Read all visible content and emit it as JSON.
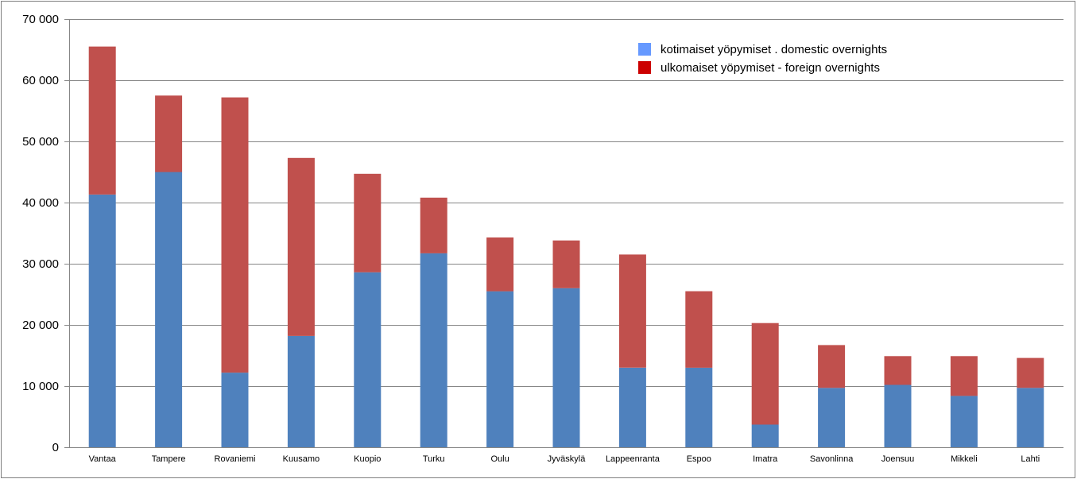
{
  "chart_data": {
    "type": "bar",
    "stacked": true,
    "title": "",
    "xlabel": "",
    "ylabel": "",
    "ylim": [
      0,
      70000
    ],
    "yticks": [
      0,
      10000,
      20000,
      30000,
      40000,
      50000,
      60000,
      70000
    ],
    "ytick_labels": [
      "0",
      "10 000",
      "20 000",
      "30 000",
      "40 000",
      "50 000",
      "60 000",
      "70 000"
    ],
    "grid": true,
    "legend_position": "top-right",
    "categories": [
      "Vantaa",
      "Tampere",
      "Rovaniemi",
      "Kuusamo",
      "Kuopio",
      "Turku",
      "Oulu",
      "Jyväskylä",
      "Lappeenranta",
      "Espoo",
      "Imatra",
      "Savonlinna",
      "Joensuu",
      "Mikkeli",
      "Lahti"
    ],
    "series": [
      {
        "name": "kotimaiset yöpymiset . domestic overnights",
        "color": "#4f81bd",
        "legend_color": "#6699ff",
        "values": [
          41300,
          45000,
          12200,
          18200,
          28600,
          31700,
          25500,
          26000,
          13000,
          13000,
          3700,
          9700,
          10200,
          8400,
          9700
        ]
      },
      {
        "name": "ulkomaiset yöpymiset - foreign overnights",
        "color": "#c0504d",
        "legend_color": "#cc0000",
        "values": [
          24200,
          12500,
          45000,
          29100,
          16100,
          9100,
          8800,
          7800,
          18500,
          12500,
          16600,
          7000,
          4700,
          6500,
          4900
        ]
      }
    ]
  }
}
